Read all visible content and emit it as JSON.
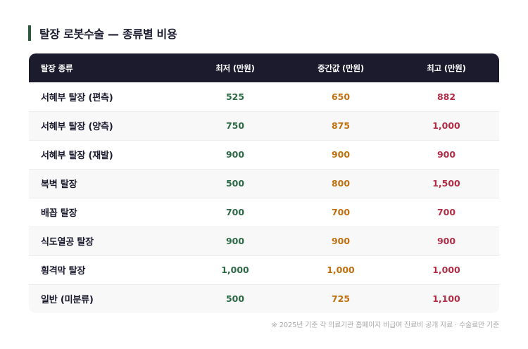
{
  "title": "탈장 로봇수술 — 종류별 비용",
  "table": {
    "headers": [
      "탈장 종류",
      "최저 (만원)",
      "중간값 (만원)",
      "최고 (만원)"
    ],
    "rows": [
      {
        "name": "서혜부 탈장 (편측)",
        "min": "525",
        "mid": "650",
        "max": "882"
      },
      {
        "name": "서혜부 탈장 (양측)",
        "min": "750",
        "mid": "875",
        "max": "1,000"
      },
      {
        "name": "서혜부 탈장 (재발)",
        "min": "900",
        "mid": "900",
        "max": "900"
      },
      {
        "name": "복벽 탈장",
        "min": "500",
        "mid": "800",
        "max": "1,500"
      },
      {
        "name": "배꼽 탈장",
        "min": "700",
        "mid": "700",
        "max": "700"
      },
      {
        "name": "식도열공 탈장",
        "min": "900",
        "mid": "900",
        "max": "900"
      },
      {
        "name": "횡격막 탈장",
        "min": "1,000",
        "mid": "1,000",
        "max": "1,000"
      },
      {
        "name": "일반 (미분류)",
        "min": "500",
        "mid": "725",
        "max": "1,100"
      }
    ]
  },
  "footnote": "※ 2025년 기준 각 의료기관 홈페이지 비급여 진료비 공개 자료 · 수술료만 기준",
  "colors": {
    "accent_bar": "#2d5a3d",
    "header_bg": "#1c1b2e",
    "min_value": "#2d6a46",
    "mid_value": "#c0700f",
    "max_value": "#b32d47"
  }
}
